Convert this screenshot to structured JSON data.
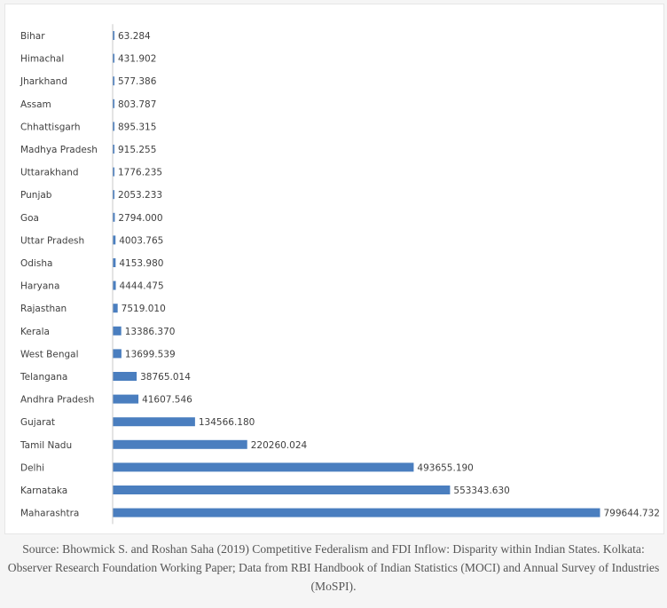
{
  "chart_data": {
    "type": "bar",
    "orientation": "horizontal",
    "categories": [
      "Bihar",
      "Himachal",
      "Jharkhand",
      "Assam",
      "Chhattisgarh",
      "Madhya Pradesh",
      "Uttarakhand",
      "Punjab",
      "Goa",
      "Uttar Pradesh",
      "Odisha",
      "Haryana",
      "Rajasthan",
      "Kerala",
      "West Bengal",
      "Telangana",
      "Andhra Pradesh",
      "Gujarat",
      "Tamil Nadu",
      "Delhi",
      "Karnataka",
      "Maharashtra"
    ],
    "values": [
      63.284,
      431.902,
      577.386,
      803.787,
      895.315,
      915.255,
      1776.235,
      2053.233,
      2794.0,
      4003.765,
      4153.98,
      4444.475,
      7519.01,
      13386.37,
      13699.539,
      38765.014,
      41607.546,
      134566.18,
      220260.024,
      493655.19,
      553343.63,
      799644.732
    ],
    "data_labels": [
      "63.284",
      "431.902",
      "577.386",
      "803.787",
      "895.315",
      "915.255",
      "1776.235",
      "2053.233",
      "2794.000",
      "4003.765",
      "4153.980",
      "4444.475",
      "7519.010",
      "13386.370",
      "13699.539",
      "38765.014",
      "41607.546",
      "134566.180",
      "220260.024",
      "493655.190",
      "553343.630",
      "799644.732"
    ],
    "xlim": [
      0,
      799644.732
    ],
    "grid": false,
    "legend": "none",
    "bar_color": "#4a7ebf",
    "axis_color": "#c8c8c8",
    "label_color": "#404040"
  },
  "caption": "Source: Bhowmick S. and Roshan Saha (2019) Competitive Federalism and FDI Inflow: Disparity within Indian States. Kolkata: Observer Research Foundation Working Paper; Data from RBI Handbook of Indian Statistics (MOCI) and Annual Survey of Industries (MoSPI)."
}
